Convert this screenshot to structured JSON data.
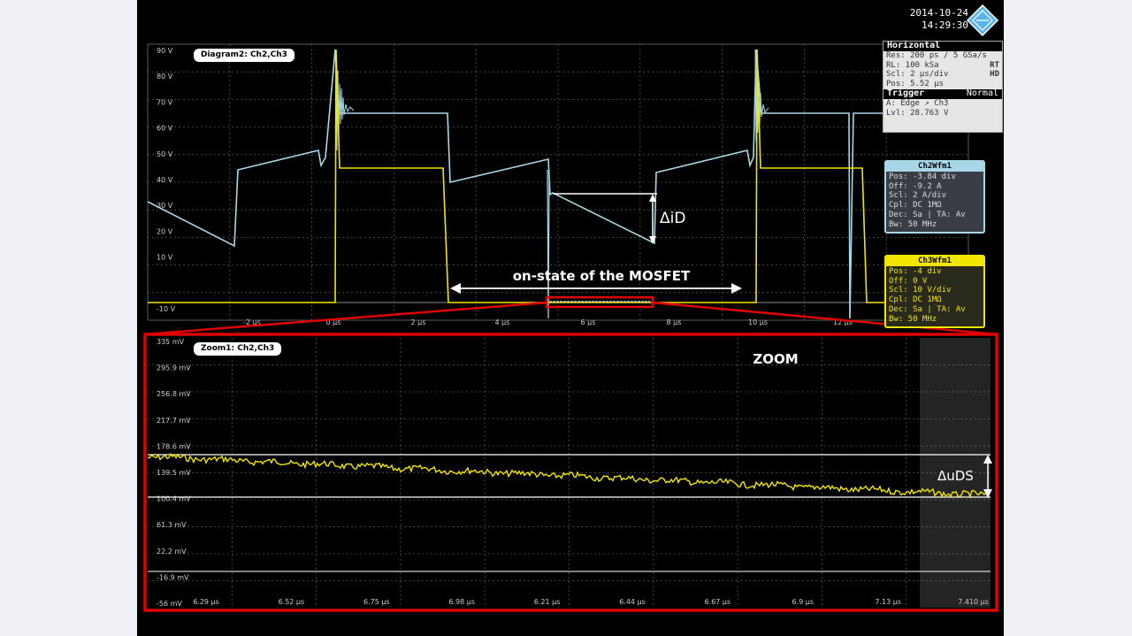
{
  "header": {
    "date": "2014-10-24",
    "time": "14:29:30"
  },
  "horizontal": {
    "title": "Horizontal",
    "res": "Res: 200 ps / 5 GSa/s",
    "rl": "RL: 100 kSa",
    "rl_flag": "RT",
    "scl": "Scl: 2 µs/div",
    "scl_flag": "HD",
    "pos": "Pos: 5.52 µs"
  },
  "trigger": {
    "title": "Trigger",
    "mode": "Normal",
    "source": "A: Edge ↗ Ch3",
    "level": "Lvl: 28.763 V"
  },
  "ch2": {
    "title": "Ch2Wfm1",
    "lines": [
      "Pos: -3.84 div",
      "Off: -9.2 A",
      "Scl: 2 A/div",
      "Cpl: DC 1MΩ",
      "Dec: Sa | TA: Av",
      "Bw: 50 MHz"
    ],
    "color": "#a8d8e8"
  },
  "ch3": {
    "title": "Ch3Wfm1",
    "lines": [
      "Pos: -4 div",
      "Off: 0 V",
      "Scl: 10 V/div",
      "Cpl: DC 1MΩ",
      "Dec: Sa | TA: Av",
      "Bw: 50 MHz"
    ],
    "color": "#f2e600"
  },
  "diagram": {
    "label": "Diagram2: Ch2,Ch3",
    "y_ticks": [
      "90 V",
      "80 V",
      "70 V",
      "60 V",
      "50 V",
      "40 V",
      "30 V",
      "20 V",
      "10 V",
      "",
      "-10 V"
    ],
    "x_ticks": [
      "-2 µs",
      "0 µs",
      "2 µs",
      "4 µs",
      "6 µs",
      "8 µs",
      "10 µs",
      "12 µs"
    ],
    "delta_label": "ΔiD",
    "onstate_label": "on-state of the MOSFET"
  },
  "zoom": {
    "label": "Zoom1: Ch2,Ch3",
    "title": "ZOOM",
    "y_ticks": [
      "335 mV",
      "295.9 mV",
      "256.8 mV",
      "217.7 mV",
      "178.6 mV",
      "139.5 mV",
      "100.4 mV",
      "61.3 mV",
      "22.2 mV",
      "-16.9 mV",
      "-56 mV"
    ],
    "x_ticks": [
      "6.29 µs",
      "6.52 µs",
      "6.75 µs",
      "6.98 µs",
      "6.21 µs",
      "6.44 µs",
      "6.67 µs",
      "6.9 µs",
      "7.13 µs",
      "7.410 µs"
    ],
    "delta_label": "ΔuDS"
  }
}
